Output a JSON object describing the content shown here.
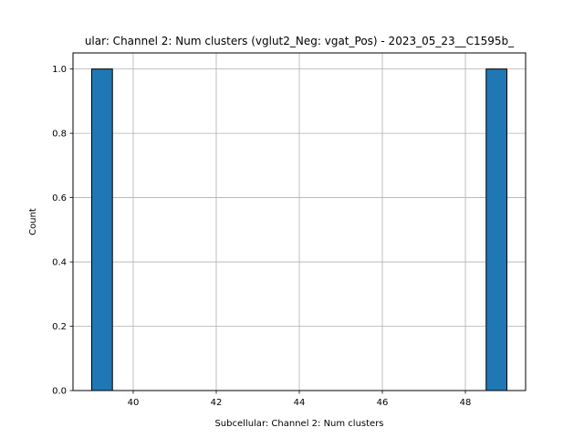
{
  "chart_data": {
    "type": "bar",
    "title": "ular: Channel 2: Num clusters (vglut2_Neg: vgat_Pos) - 2023_05_23__C1595b_",
    "xlabel": "Subcellular: Channel 2: Num clusters",
    "ylabel": "Count",
    "xlim": [
      38.55,
      49.45
    ],
    "ylim": [
      0,
      1.05
    ],
    "x_ticks": [
      "40",
      "42",
      "44",
      "46",
      "48"
    ],
    "y_ticks": [
      "0.0",
      "0.2",
      "0.4",
      "0.6",
      "0.8",
      "1.0"
    ],
    "bin_edges": [
      39,
      39.5,
      40,
      40.5,
      41,
      41.5,
      42,
      42.5,
      43,
      43.5,
      44,
      44.5,
      45,
      45.5,
      46,
      46.5,
      47,
      47.5,
      48,
      48.5,
      49
    ],
    "counts": [
      1,
      0,
      0,
      0,
      0,
      0,
      0,
      0,
      0,
      0,
      0,
      0,
      0,
      0,
      0,
      0,
      0,
      0,
      0,
      1
    ],
    "grid": true,
    "bar_color": "#1f77b4",
    "edge_color": "#000000",
    "grid_color": "#b0b0b0"
  }
}
